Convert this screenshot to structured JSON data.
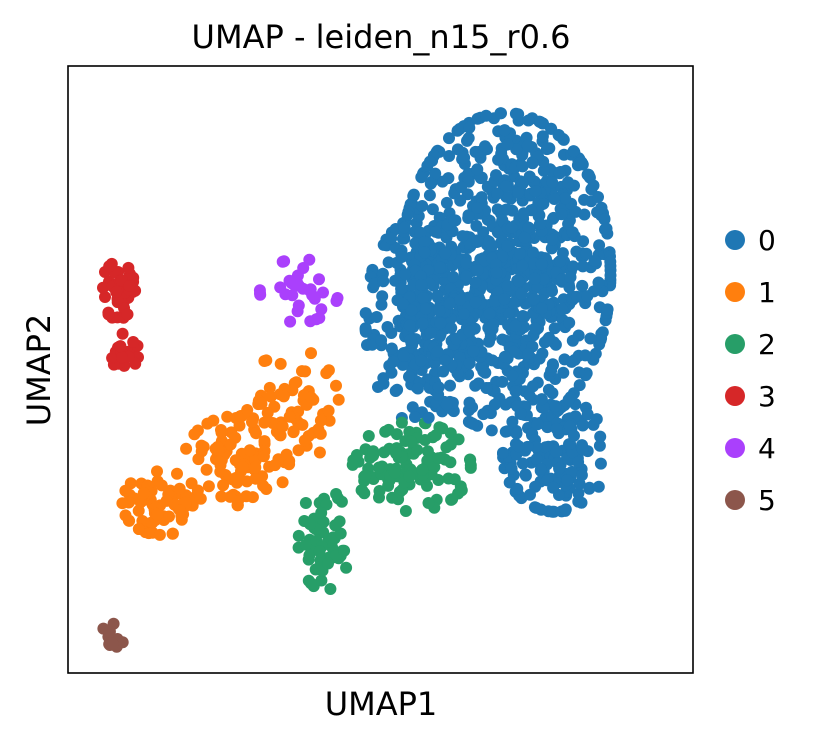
{
  "chart_data": {
    "type": "scatter",
    "title": "UMAP - leiden_n15_r0.6",
    "xlabel": "UMAP1",
    "ylabel": "UMAP2",
    "xlim": [
      0,
      100
    ],
    "ylim": [
      0,
      100
    ],
    "grid": false,
    "ticks": false,
    "legend_position": "right",
    "series": [
      {
        "name": "0",
        "color": "#1f77b4",
        "clusters": [
          {
            "cx": 70,
            "cy": 66,
            "rx": 16,
            "ry": 25,
            "n": 900
          },
          {
            "cx": 56,
            "cy": 58,
            "rx": 8,
            "ry": 16,
            "n": 200
          },
          {
            "cx": 78,
            "cy": 36,
            "rx": 8,
            "ry": 9,
            "n": 140
          }
        ]
      },
      {
        "name": "1",
        "color": "#ff7f0e",
        "clusters": [
          {
            "cx": 15,
            "cy": 28,
            "rx": 6,
            "ry": 5,
            "n": 70
          },
          {
            "cx": 27,
            "cy": 35,
            "rx": 8,
            "ry": 7,
            "n": 90
          },
          {
            "cx": 36,
            "cy": 44,
            "rx": 7,
            "ry": 9,
            "n": 70
          }
        ]
      },
      {
        "name": "2",
        "color": "#279e68",
        "clusters": [
          {
            "cx": 55,
            "cy": 34,
            "rx": 9,
            "ry": 7,
            "n": 120
          },
          {
            "cx": 41,
            "cy": 22,
            "rx": 4,
            "ry": 8,
            "n": 55
          }
        ]
      },
      {
        "name": "3",
        "color": "#d62728",
        "clusters": [
          {
            "cx": 8,
            "cy": 63,
            "rx": 2.6,
            "ry": 4.5,
            "n": 35
          },
          {
            "cx": 9,
            "cy": 53,
            "rx": 2.2,
            "ry": 3.0,
            "n": 22
          }
        ]
      },
      {
        "name": "4",
        "color": "#aa40fc",
        "clusters": [
          {
            "cx": 37,
            "cy": 63,
            "rx": 6,
            "ry": 5,
            "n": 32
          }
        ]
      },
      {
        "name": "5",
        "color": "#8c564b",
        "clusters": [
          {
            "cx": 7,
            "cy": 6,
            "rx": 1.8,
            "ry": 3,
            "n": 12
          }
        ]
      }
    ]
  }
}
